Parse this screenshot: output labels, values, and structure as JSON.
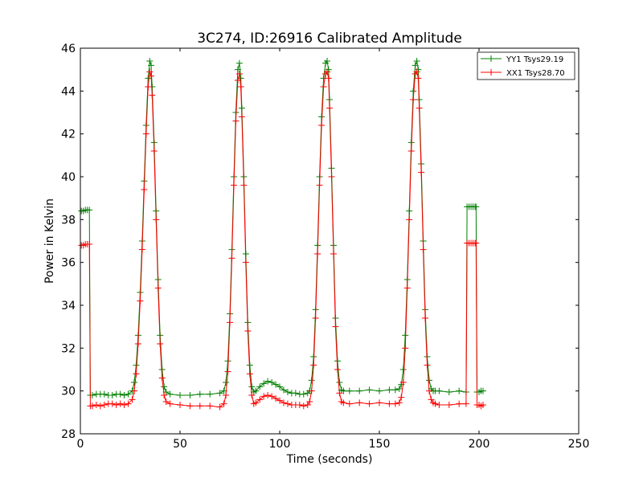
{
  "chart_data": {
    "type": "line",
    "title": "3C274, ID:26916 Calibrated Amplitude",
    "xlabel": "Time (seconds)",
    "ylabel": "Power in Kelvin",
    "xlim": [
      0,
      250
    ],
    "ylim": [
      28,
      46
    ],
    "xticks": [
      0,
      50,
      100,
      150,
      200,
      250
    ],
    "yticks": [
      28,
      30,
      32,
      34,
      36,
      38,
      40,
      42,
      44,
      46
    ],
    "grid": false,
    "legend_position": "top-right",
    "marker": "plus",
    "series": [
      {
        "name": "YY1 Tsys29.19",
        "color": "#008000",
        "x": [
          0.5,
          1.5,
          2.5,
          3.5,
          4.5,
          5,
          6,
          8,
          10,
          12,
          14,
          16,
          18,
          20,
          22,
          24,
          26,
          27,
          28,
          29,
          30,
          31,
          32,
          33,
          34,
          34.8,
          35.5,
          36,
          37,
          38,
          39,
          40,
          41,
          42,
          43,
          45,
          50,
          55,
          60,
          65,
          70,
          72,
          73,
          74,
          75,
          76,
          77,
          78,
          79,
          79.8,
          80.5,
          81,
          82,
          83,
          84,
          85,
          86,
          87,
          88,
          90,
          92,
          94,
          96,
          98,
          100,
          102,
          104,
          106,
          108,
          110,
          112,
          114,
          115,
          116,
          117,
          118,
          119,
          120,
          121,
          122,
          123,
          123.8,
          124.5,
          125,
          126,
          127,
          128,
          129,
          130,
          131,
          132,
          135,
          140,
          145,
          150,
          155,
          158,
          160,
          161,
          162,
          163,
          164,
          165,
          166,
          167,
          168,
          168.8,
          169.5,
          170,
          171,
          172,
          173,
          174,
          175,
          176,
          177,
          178,
          180,
          185,
          190,
          193.5,
          194,
          195,
          196,
          197,
          198,
          198.5,
          199,
          200,
          201,
          202
        ],
        "y": [
          38.4,
          38.4,
          38.45,
          38.45,
          38.45,
          29.8,
          29.8,
          29.85,
          29.85,
          29.85,
          29.8,
          29.8,
          29.85,
          29.85,
          29.8,
          29.85,
          30.0,
          30.4,
          31.2,
          32.6,
          34.6,
          37.0,
          39.8,
          42.4,
          44.6,
          45.4,
          45.2,
          44.2,
          41.6,
          38.4,
          35.2,
          32.6,
          31.0,
          30.2,
          29.95,
          29.85,
          29.8,
          29.8,
          29.85,
          29.85,
          29.9,
          30.0,
          30.4,
          31.4,
          33.6,
          36.6,
          40.0,
          43.0,
          45.0,
          45.3,
          44.6,
          43.2,
          40.0,
          36.4,
          33.2,
          31.2,
          30.2,
          29.95,
          30.0,
          30.2,
          30.35,
          30.45,
          30.4,
          30.3,
          30.2,
          30.05,
          29.95,
          29.9,
          29.9,
          29.85,
          29.85,
          29.9,
          30.0,
          30.5,
          31.6,
          33.8,
          36.8,
          40.0,
          42.8,
          44.6,
          45.3,
          45.4,
          45.0,
          43.6,
          40.4,
          36.8,
          33.4,
          31.4,
          30.4,
          30.05,
          30.0,
          30.0,
          30.0,
          30.05,
          30.0,
          30.05,
          30.05,
          30.1,
          30.3,
          31.0,
          32.6,
          35.2,
          38.4,
          41.6,
          44.0,
          45.2,
          45.4,
          45.0,
          43.6,
          40.6,
          37.0,
          33.8,
          31.6,
          30.5,
          30.1,
          30.0,
          30.0,
          30.0,
          29.95,
          30.0,
          29.95,
          38.6,
          38.6,
          38.6,
          38.6,
          38.6,
          38.6,
          29.95,
          29.95,
          30.0,
          30.0
        ]
      },
      {
        "name": "XX1 Tsys28.70",
        "color": "#ff0000",
        "x": [
          0.5,
          1.5,
          2.5,
          3.5,
          4.5,
          5,
          6,
          8,
          10,
          12,
          14,
          16,
          18,
          20,
          22,
          24,
          26,
          27,
          28,
          29,
          30,
          31,
          32,
          33,
          34,
          34.8,
          35.5,
          36,
          37,
          38,
          39,
          40,
          41,
          42,
          43,
          45,
          50,
          55,
          60,
          65,
          70,
          72,
          73,
          74,
          75,
          76,
          77,
          78,
          79,
          79.8,
          80.5,
          81,
          82,
          83,
          84,
          85,
          86,
          87,
          88,
          90,
          92,
          94,
          96,
          98,
          100,
          102,
          104,
          106,
          108,
          110,
          112,
          114,
          115,
          116,
          117,
          118,
          119,
          120,
          121,
          122,
          123,
          123.8,
          124.5,
          125,
          126,
          127,
          128,
          129,
          130,
          131,
          132,
          135,
          140,
          145,
          150,
          155,
          158,
          160,
          161,
          162,
          163,
          164,
          165,
          166,
          167,
          168,
          168.8,
          169.5,
          170,
          171,
          172,
          173,
          174,
          175,
          176,
          177,
          178,
          180,
          185,
          190,
          193.5,
          194,
          195,
          196,
          197,
          198,
          198.5,
          199,
          200,
          201,
          202
        ],
        "y": [
          36.8,
          36.8,
          36.85,
          36.85,
          36.85,
          29.3,
          29.3,
          29.35,
          29.3,
          29.35,
          29.4,
          29.4,
          29.35,
          29.4,
          29.35,
          29.4,
          29.6,
          30.0,
          30.8,
          32.2,
          34.2,
          36.6,
          39.4,
          42.0,
          44.2,
          44.9,
          44.7,
          43.8,
          41.2,
          38.0,
          34.8,
          32.2,
          30.6,
          29.8,
          29.5,
          29.4,
          29.35,
          29.3,
          29.3,
          29.3,
          29.25,
          29.4,
          29.8,
          30.9,
          33.2,
          36.2,
          39.6,
          42.6,
          44.5,
          44.8,
          44.2,
          42.8,
          39.6,
          36.0,
          32.8,
          30.8,
          29.8,
          29.4,
          29.45,
          29.6,
          29.75,
          29.8,
          29.75,
          29.65,
          29.55,
          29.45,
          29.4,
          29.35,
          29.35,
          29.35,
          29.3,
          29.35,
          29.5,
          30.0,
          31.2,
          33.4,
          36.4,
          39.6,
          42.4,
          44.2,
          44.8,
          44.9,
          44.6,
          43.2,
          40.0,
          36.4,
          33.0,
          31.0,
          29.9,
          29.5,
          29.45,
          29.4,
          29.45,
          29.4,
          29.45,
          29.4,
          29.4,
          29.45,
          29.7,
          30.4,
          32.0,
          34.8,
          38.0,
          41.2,
          43.6,
          44.8,
          44.9,
          44.6,
          43.2,
          40.2,
          36.6,
          33.4,
          31.2,
          30.0,
          29.6,
          29.45,
          29.4,
          29.35,
          29.35,
          29.4,
          29.4,
          36.9,
          36.9,
          36.9,
          36.9,
          36.9,
          36.9,
          29.35,
          29.35,
          29.3,
          29.35
        ]
      }
    ]
  }
}
